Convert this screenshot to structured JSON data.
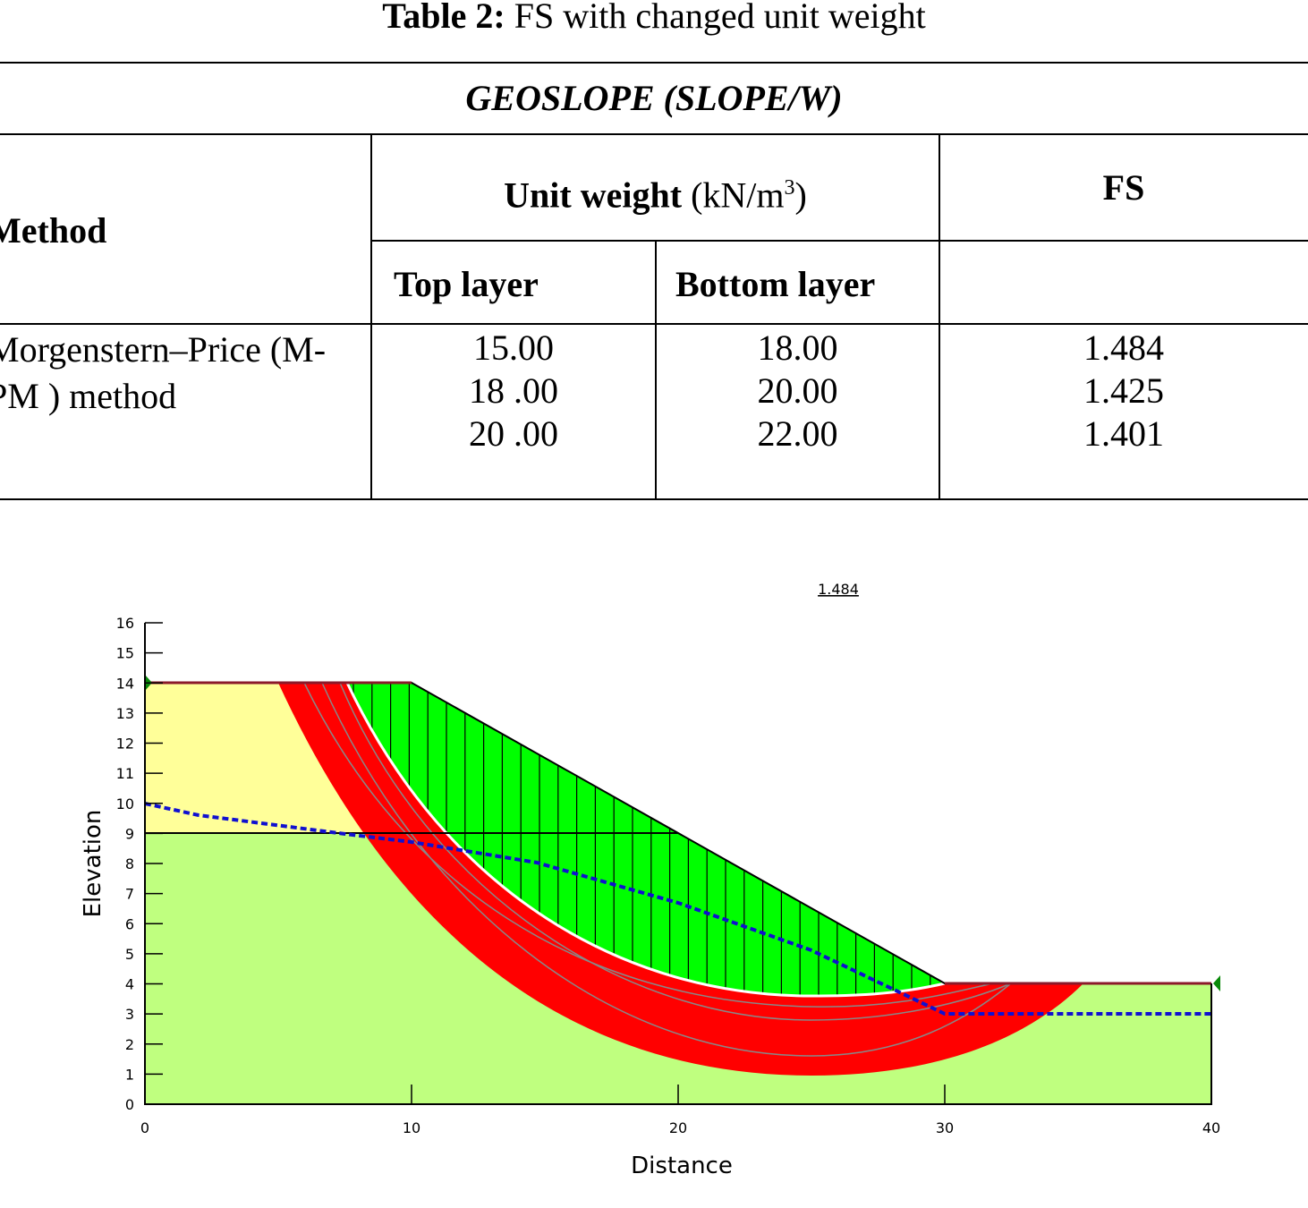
{
  "title": {
    "label": "Table 2:",
    "text": "FS with changed unit weight"
  },
  "table": {
    "caption": "GEOSLOPE (SLOPE/W)",
    "header": {
      "method": "Method",
      "unit_weight": "Unit weight",
      "unit": "(kN/m",
      "unit_sup": "3",
      "unit_close": ")",
      "fs": "FS",
      "top_layer": "Top layer",
      "bottom_layer": "Bottom layer"
    },
    "method": "Morgenstern–Price (M-PM ) method",
    "rows": [
      [
        "15.00",
        "18.00",
        "1.484"
      ],
      [
        "18 .00",
        "20.00",
        "1.425"
      ],
      [
        "20 .00",
        "22.00",
        "1.401"
      ]
    ]
  },
  "figure": {
    "fs_label": "1.484",
    "x_label": "Distance",
    "y_label": "Elevation",
    "xlim": [
      0,
      40
    ],
    "ylim": [
      0,
      16
    ],
    "xticks": [
      0,
      10,
      20,
      30,
      40
    ],
    "yticks": [
      0,
      1,
      2,
      3,
      4,
      5,
      6,
      7,
      8,
      9,
      10,
      11,
      12,
      13,
      14,
      15,
      16
    ]
  }
}
